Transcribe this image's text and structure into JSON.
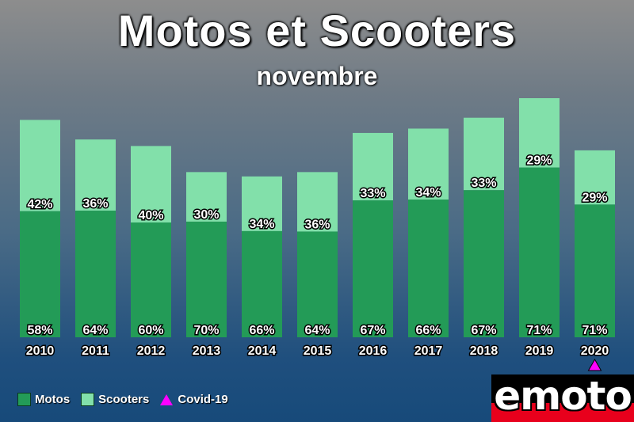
{
  "chart_data": {
    "type": "bar",
    "stacked": true,
    "title": "Motos et Scooters",
    "subtitle": "novembre",
    "categories": [
      "2010",
      "2011",
      "2012",
      "2013",
      "2014",
      "2015",
      "2016",
      "2017",
      "2018",
      "2019",
      "2020"
    ],
    "series": [
      {
        "name": "Motos",
        "color": "#239b57",
        "values": [
          58,
          64,
          60,
          70,
          66,
          64,
          67,
          66,
          67,
          71,
          71
        ],
        "labels": [
          "58%",
          "64%",
          "60%",
          "70%",
          "66%",
          "64%",
          "67%",
          "66%",
          "67%",
          "71%",
          "71%"
        ]
      },
      {
        "name": "Scooters",
        "color": "#82e0aa",
        "values": [
          42,
          36,
          40,
          30,
          34,
          36,
          33,
          34,
          33,
          29,
          29
        ],
        "labels": [
          "42%",
          "36%",
          "40%",
          "30%",
          "34%",
          "36%",
          "33%",
          "34%",
          "33%",
          "29%",
          "29%"
        ]
      }
    ],
    "relative_totals": [
      100,
      91,
      88,
      76,
      74,
      76,
      94,
      96,
      101,
      110,
      86
    ],
    "markers": [
      {
        "category": "2020",
        "name": "Covid-19",
        "color": "#ff00ff",
        "shape": "triangle"
      }
    ],
    "legend_position": "bottom-left",
    "grid": false
  },
  "legend": {
    "motos_label": "Motos",
    "scooters_label": "Scooters",
    "covid_label": "Covid-19"
  },
  "logo": {
    "text": "emoto"
  }
}
